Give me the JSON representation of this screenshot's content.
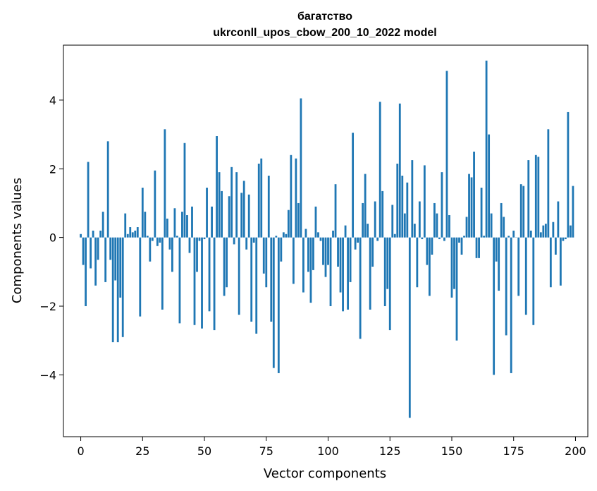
{
  "chart_data": {
    "type": "bar",
    "title": "багатство",
    "subtitle": "ukrconll_upos_cbow_200_10_2022 model",
    "xlabel": "Vector components",
    "ylabel": "Components values",
    "xlim": [
      -7,
      205
    ],
    "ylim": [
      -5.8,
      5.6
    ],
    "xticks": [
      0,
      25,
      50,
      75,
      100,
      125,
      150,
      175,
      200
    ],
    "yticks": [
      -4,
      -2,
      0,
      2,
      4
    ],
    "xtick_labels": [
      "0",
      "25",
      "50",
      "75",
      "100",
      "125",
      "150",
      "175",
      "200"
    ],
    "ytick_labels": [
      "−4",
      "−2",
      "0",
      "2",
      "4"
    ],
    "bar_color": "#1f77b4",
    "grid": false,
    "x": [
      0,
      1,
      2,
      3,
      4,
      5,
      6,
      7,
      8,
      9,
      10,
      11,
      12,
      13,
      14,
      15,
      16,
      17,
      18,
      19,
      20,
      21,
      22,
      23,
      24,
      25,
      26,
      27,
      28,
      29,
      30,
      31,
      32,
      33,
      34,
      35,
      36,
      37,
      38,
      39,
      40,
      41,
      42,
      43,
      44,
      45,
      46,
      47,
      48,
      49,
      50,
      51,
      52,
      53,
      54,
      55,
      56,
      57,
      58,
      59,
      60,
      61,
      62,
      63,
      64,
      65,
      66,
      67,
      68,
      69,
      70,
      71,
      72,
      73,
      74,
      75,
      76,
      77,
      78,
      79,
      80,
      81,
      82,
      83,
      84,
      85,
      86,
      87,
      88,
      89,
      90,
      91,
      92,
      93,
      94,
      95,
      96,
      97,
      98,
      99,
      100,
      101,
      102,
      103,
      104,
      105,
      106,
      107,
      108,
      109,
      110,
      111,
      112,
      113,
      114,
      115,
      116,
      117,
      118,
      119,
      120,
      121,
      122,
      123,
      124,
      125,
      126,
      127,
      128,
      129,
      130,
      131,
      132,
      133,
      134,
      135,
      136,
      137,
      138,
      139,
      140,
      141,
      142,
      143,
      144,
      145,
      146,
      147,
      148,
      149,
      150,
      151,
      152,
      153,
      154,
      155,
      156,
      157,
      158,
      159,
      160,
      161,
      162,
      163,
      164,
      165,
      166,
      167,
      168,
      169,
      170,
      171,
      172,
      173,
      174,
      175,
      176,
      177,
      178,
      179,
      180,
      181,
      182,
      183,
      184,
      185,
      186,
      187,
      188,
      189,
      190,
      191,
      192,
      193,
      194,
      195,
      196,
      197,
      198,
      199
    ],
    "values": [
      0.1,
      -0.8,
      -2.0,
      2.2,
      -0.9,
      0.2,
      -1.4,
      -0.65,
      0.2,
      0.75,
      -1.3,
      2.8,
      -0.65,
      -3.05,
      -1.25,
      -3.05,
      -1.75,
      -2.9,
      0.7,
      0.1,
      0.3,
      0.15,
      0.2,
      0.3,
      -2.3,
      1.45,
      0.75,
      0.05,
      -0.7,
      -0.1,
      1.95,
      -0.25,
      -0.15,
      -2.1,
      3.15,
      0.55,
      -0.35,
      -1.0,
      0.85,
      0.05,
      -2.5,
      0.75,
      2.75,
      0.65,
      -0.45,
      0.9,
      -2.55,
      -1.0,
      -0.1,
      -2.65,
      -0.05,
      1.45,
      -2.15,
      0.9,
      -2.7,
      2.95,
      1.9,
      1.35,
      -1.7,
      -1.45,
      1.2,
      2.05,
      -0.2,
      1.9,
      -2.25,
      1.3,
      1.65,
      -0.35,
      1.25,
      -2.45,
      -0.15,
      -2.8,
      2.15,
      2.3,
      -1.05,
      -1.45,
      1.8,
      -2.45,
      -3.8,
      0.05,
      -3.95,
      -0.7,
      0.15,
      0.1,
      0.8,
      2.4,
      -1.35,
      2.3,
      1.0,
      4.05,
      -1.6,
      0.25,
      -1.0,
      -1.9,
      -0.95,
      0.9,
      0.15,
      -0.1,
      -0.8,
      -1.15,
      -0.8,
      -2.0,
      0.2,
      1.55,
      -0.85,
      -1.6,
      -2.15,
      0.35,
      -2.1,
      -1.3,
      3.05,
      -0.35,
      -0.15,
      -2.95,
      1.0,
      1.85,
      0.4,
      -2.1,
      -0.85,
      1.05,
      -0.1,
      3.95,
      1.35,
      -2.0,
      -1.5,
      -2.7,
      0.95,
      0.1,
      2.15,
      3.9,
      1.8,
      0.7,
      1.6,
      -5.25,
      2.25,
      0.4,
      -1.45,
      1.05,
      -0.05,
      2.1,
      -0.8,
      -1.7,
      -0.5,
      1.0,
      0.7,
      -0.05,
      1.9,
      -0.1,
      4.85,
      0.65,
      -1.75,
      -1.5,
      -3.0,
      -0.15,
      -0.5,
      0.05,
      0.6,
      1.85,
      1.75,
      2.5,
      -0.6,
      -0.6,
      1.45,
      0.05,
      5.15,
      3.0,
      0.7,
      -4.0,
      -0.7,
      -1.55,
      1.0,
      0.6,
      -2.85,
      0.05,
      -3.95,
      0.2,
      0.0,
      -1.7,
      1.55,
      1.5,
      -2.25,
      2.25,
      0.2,
      -2.55,
      2.4,
      2.35,
      0.15,
      0.35,
      0.4,
      3.15,
      -1.45,
      0.45,
      -0.5,
      1.05,
      -1.4,
      -0.1,
      -0.05,
      3.65,
      0.35,
      1.5
    ]
  }
}
